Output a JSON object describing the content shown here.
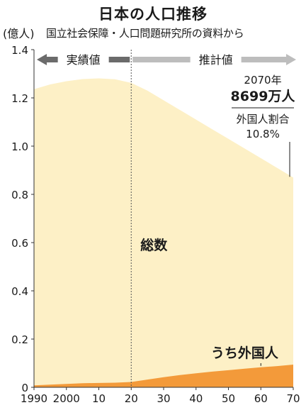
{
  "title": "日本の人口推移",
  "source": "国立社会保障・人口問題研究所の資料から",
  "colors": {
    "total_fill": "#fdf0c6",
    "foreign_fill": "#f39a3a",
    "arrow_actual": "#6b6b6b",
    "arrow_projection": "#bdbdbd",
    "divider": "#555555"
  },
  "chart_data": {
    "type": "area",
    "ylabel": "(億人)",
    "xlabel": "",
    "ylim": [
      0,
      1.4
    ],
    "xlim": [
      1990,
      2070
    ],
    "yticks": [
      "0",
      "0.2",
      "0.4",
      "0.6",
      "0.8",
      "1.0",
      "1.2",
      "1.4"
    ],
    "xticks": [
      {
        "year": 1990,
        "label": "1990"
      },
      {
        "year": 2000,
        "label": "2000"
      },
      {
        "year": 2010,
        "label": "10"
      },
      {
        "year": 2020,
        "label": "20"
      },
      {
        "year": 2030,
        "label": "30"
      },
      {
        "year": 2040,
        "label": "40"
      },
      {
        "year": 2050,
        "label": "50"
      },
      {
        "year": 2060,
        "label": "60"
      },
      {
        "year": 2070,
        "label": "70"
      }
    ],
    "x": [
      1990,
      1995,
      2000,
      2005,
      2010,
      2015,
      2020,
      2025,
      2030,
      2035,
      2040,
      2045,
      2050,
      2055,
      2060,
      2065,
      2070
    ],
    "series": [
      {
        "name": "総数",
        "values": [
          1.236,
          1.256,
          1.269,
          1.278,
          1.281,
          1.277,
          1.262,
          1.23,
          1.19,
          1.15,
          1.11,
          1.07,
          1.03,
          0.99,
          0.95,
          0.91,
          0.87
        ]
      },
      {
        "name": "うち外国人",
        "values": [
          0.008,
          0.011,
          0.014,
          0.017,
          0.018,
          0.019,
          0.022,
          0.032,
          0.042,
          0.051,
          0.058,
          0.065,
          0.071,
          0.077,
          0.083,
          0.088,
          0.094
        ]
      }
    ],
    "periods": [
      {
        "label": "実績値",
        "from": 1990,
        "to": 2020
      },
      {
        "label": "推計値",
        "from": 2020,
        "to": 2070
      }
    ],
    "divider_year": 2020,
    "annotation": {
      "year_label": "2070年",
      "population": "8699万人",
      "foreign_label": "外国人割合",
      "foreign_ratio": "10.8%"
    }
  }
}
